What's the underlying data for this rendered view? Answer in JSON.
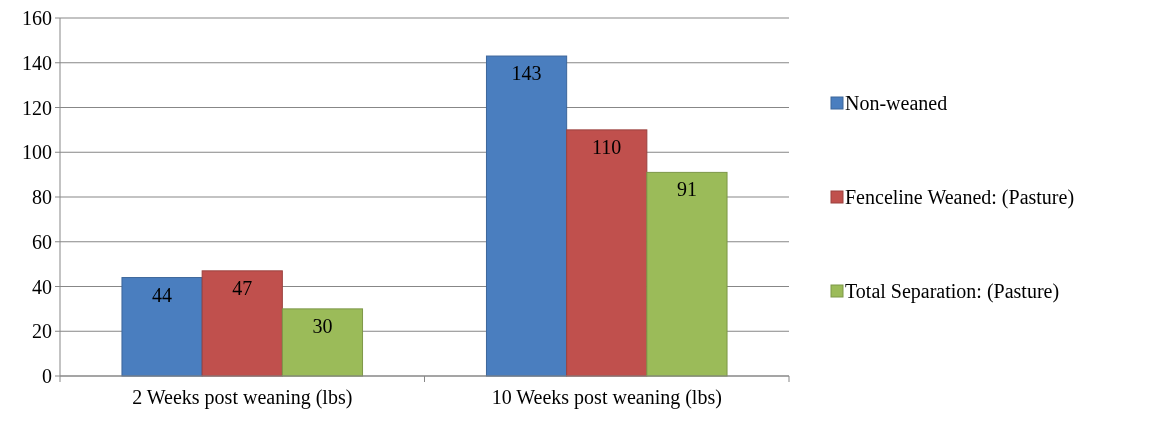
{
  "chart_data": {
    "type": "bar",
    "categories": [
      "2 Weeks post weaning (lbs)",
      "10 Weeks post weaning (lbs)"
    ],
    "series": [
      {
        "name": "Non-weaned",
        "color": "#4a7ebf",
        "values": [
          44,
          143
        ]
      },
      {
        "name": "Fenceline Weaned: (Pasture)",
        "color": "#c0504d",
        "values": [
          47,
          110
        ]
      },
      {
        "name": "Total Separation: (Pasture)",
        "color": "#9bbb59",
        "values": [
          30,
          91
        ]
      }
    ],
    "ylim": [
      0,
      160
    ],
    "yticks": [
      0,
      20,
      40,
      60,
      80,
      100,
      120,
      140,
      160
    ],
    "grid": "y",
    "legend": "right",
    "data_labels": true
  }
}
